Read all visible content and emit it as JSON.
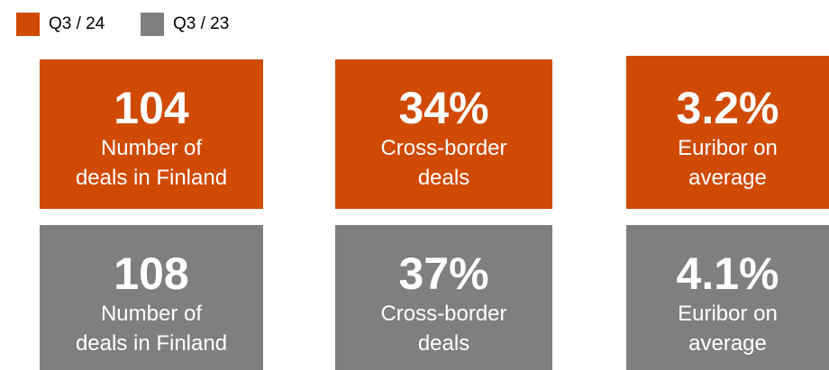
{
  "legend": [
    {
      "label": "Q3 / 24",
      "color": "#d04a02"
    },
    {
      "label": "Q3 / 23",
      "color": "#7f7f7f"
    }
  ],
  "rows": [
    {
      "tiles": [
        {
          "value": "104",
          "lines": [
            "Number of",
            "deals in Finland"
          ]
        },
        {
          "value": "34%",
          "lines": [
            "Cross-border",
            "deals"
          ]
        },
        {
          "value": "3.2%",
          "lines": [
            "Euribor on",
            "average"
          ]
        }
      ]
    },
    {
      "tiles": [
        {
          "value": "108",
          "lines": [
            "Number of",
            "deals in Finland"
          ]
        },
        {
          "value": "37%",
          "lines": [
            "Cross-border",
            "deals"
          ]
        },
        {
          "value": "4.1%",
          "lines": [
            "Euribor on",
            "average"
          ]
        }
      ]
    }
  ]
}
